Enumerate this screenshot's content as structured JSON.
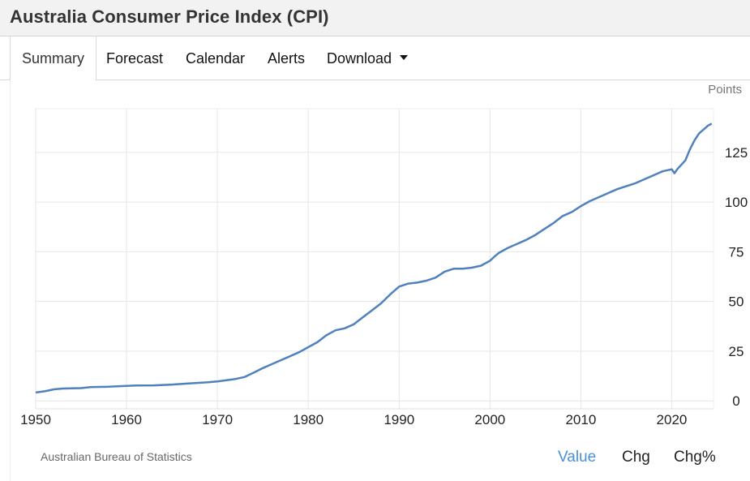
{
  "header": {
    "title": "Australia Consumer Price Index (CPI)"
  },
  "tabs": {
    "summary": "Summary",
    "forecast": "Forecast",
    "calendar": "Calendar",
    "alerts": "Alerts",
    "download": "Download"
  },
  "chart": {
    "units": "Points",
    "source": "Australian Bureau of Statistics"
  },
  "toggles": {
    "value": "Value",
    "chg": "Chg",
    "chg_pct": "Chg%"
  },
  "colors": {
    "line": "#4f81bd",
    "active_toggle": "#4a90d9",
    "grid": "#e6e6e6"
  },
  "chart_data": {
    "type": "line",
    "title": "Australia Consumer Price Index (CPI)",
    "ylabel": "Points",
    "xlabel": "",
    "xlim": [
      1950,
      2024.6
    ],
    "ylim": [
      -4,
      147
    ],
    "xticks": [
      "1950",
      "1960",
      "1970",
      "1980",
      "1990",
      "2000",
      "2010",
      "2020"
    ],
    "yticks": [
      "0",
      "25",
      "50",
      "75",
      "100",
      "125"
    ],
    "grid": true,
    "series": [
      {
        "name": "CPI",
        "x": [
          1950,
          1951,
          1952,
          1953,
          1955,
          1956,
          1958,
          1960,
          1961,
          1963,
          1965,
          1967,
          1969,
          1970,
          1971,
          1972,
          1973,
          1974,
          1975,
          1976,
          1977,
          1978,
          1979,
          1980,
          1981,
          1982,
          1983,
          1984,
          1985,
          1986,
          1987,
          1988,
          1989,
          1990,
          1991,
          1992,
          1993,
          1994,
          1995,
          1996,
          1997,
          1998,
          1999,
          2000,
          2000.6,
          2001,
          2002,
          2003,
          2004,
          2005,
          2006,
          2007,
          2008,
          2009,
          2010,
          2011,
          2012,
          2013,
          2014,
          2015,
          2016,
          2017,
          2018,
          2019,
          2020,
          2020.3,
          2020.6,
          2021,
          2021.5,
          2022,
          2022.5,
          2023,
          2023.5,
          2024,
          2024.4
        ],
        "values": [
          4.2,
          4.8,
          5.8,
          6.2,
          6.4,
          6.9,
          7.1,
          7.5,
          7.7,
          7.8,
          8.2,
          8.8,
          9.4,
          9.8,
          10.4,
          11.0,
          12.0,
          14.2,
          16.5,
          18.5,
          20.5,
          22.5,
          24.5,
          27.0,
          29.5,
          33.0,
          35.5,
          36.5,
          38.5,
          42.0,
          45.5,
          49.0,
          53.5,
          57.5,
          59.0,
          59.5,
          60.5,
          62.0,
          65.0,
          66.5,
          66.5,
          67.0,
          68.0,
          70.5,
          73.0,
          74.5,
          77.0,
          79.0,
          81.0,
          83.5,
          86.5,
          89.5,
          93.0,
          95.0,
          98.0,
          100.5,
          102.5,
          104.5,
          106.5,
          108.0,
          109.5,
          111.5,
          113.5,
          115.5,
          116.5,
          114.5,
          116.5,
          118.5,
          121.0,
          126.5,
          131.0,
          134.5,
          136.5,
          138.5,
          139.5
        ]
      }
    ]
  }
}
